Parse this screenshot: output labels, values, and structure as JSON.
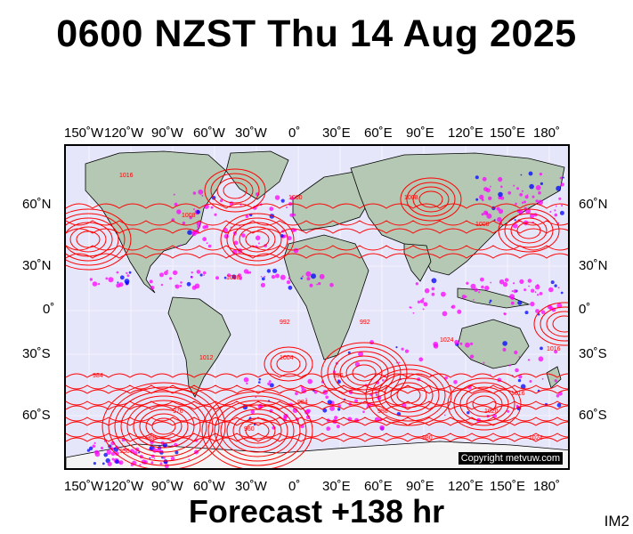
{
  "header": {
    "title": "0600 NZST Thu 14 Aug 2025"
  },
  "footer": {
    "forecast": "Forecast +138 hr",
    "tag": "IM2"
  },
  "map": {
    "lon_labels": [
      "150˚W",
      "120˚W",
      "90˚W",
      "60˚W",
      "30˚W",
      "0˚",
      "30˚E",
      "60˚E",
      "90˚E",
      "120˚E",
      "150˚E",
      "180˚"
    ],
    "lat_labels": [
      "60˚N",
      "30˚N",
      "0˚",
      "30˚S",
      "60˚S"
    ],
    "copyright": "Copyright metvuw.com",
    "isobar_labels": [
      "1016",
      "1008",
      "1000",
      "992",
      "984",
      "976",
      "968",
      "960",
      "950",
      "1024",
      "1012",
      "1004",
      "996",
      "988",
      "980",
      "1020",
      "1016",
      "1008",
      "1000",
      "992",
      "984",
      "1024",
      "1016",
      "1008"
    ],
    "colors": {
      "ocean": "#e6e6fa",
      "land": "#b4c8b4",
      "isobar": "#ff0000",
      "rain_light": "#ff00ff",
      "rain_heavy": "#0000ff"
    }
  }
}
